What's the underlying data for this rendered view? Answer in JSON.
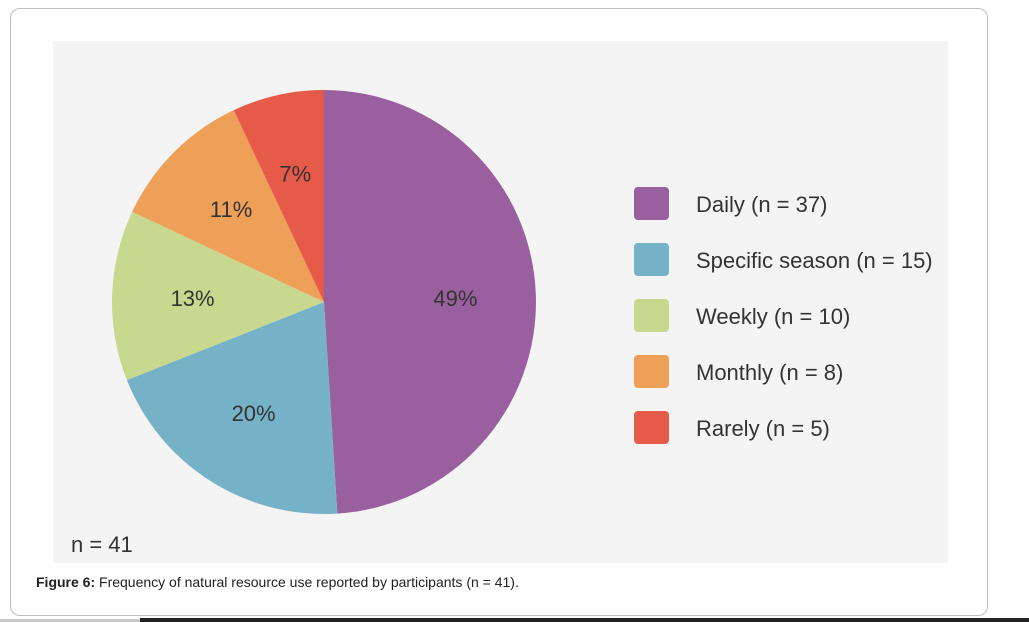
{
  "figure": {
    "caption_label": "Figure 6:",
    "caption_text": " Frequency of natural resource use reported by participants (n = 41).",
    "sample_note": "n = 41"
  },
  "chart_data": {
    "type": "pie",
    "slices": [
      {
        "label": "Daily (n = 37)",
        "percent": 49,
        "percent_label": "49%",
        "color": "#9a5f9e"
      },
      {
        "label": "Specific season (n = 15)",
        "percent": 20,
        "percent_label": "20%",
        "color": "#76b2c7"
      },
      {
        "label": "Weekly (n = 10)",
        "percent": 13,
        "percent_label": "13%",
        "color": "#c8d88e"
      },
      {
        "label": "Monthly (n = 8)",
        "percent": 11,
        "percent_label": "11%",
        "color": "#ee9f58"
      },
      {
        "label": "Rarely (n = 5)",
        "percent": 7,
        "percent_label": "7%",
        "color": "#e65a4a"
      }
    ],
    "legend_position": "right",
    "start_angle": "12 o'clock, clockwise"
  }
}
